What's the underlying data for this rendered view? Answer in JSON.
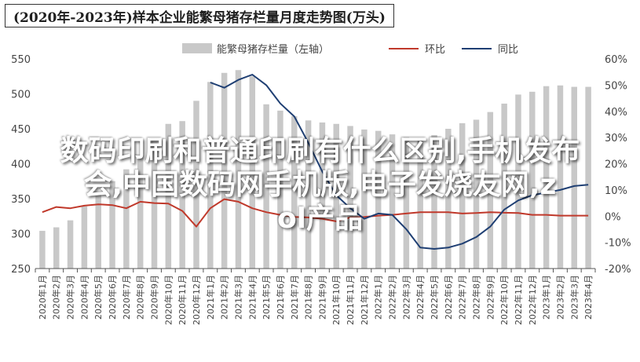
{
  "title": "(2020年-2023年)样本企业能繁母猪存栏量月度走势图(万头)",
  "overlay": {
    "line1": "数码印刷和普通印刷有什么区别,手机发布",
    "line2": "会,中国数码网手机版,电子发烧友网,z",
    "line3": "ol产品"
  },
  "colors": {
    "bar": "#c8c8c8",
    "ring": "#c0392b",
    "yoy": "#1f3f73",
    "axis": "#555555"
  },
  "chart_data": {
    "type": "bar+line",
    "categories": [
      "2020年1月",
      "2020年2月",
      "2020年3月",
      "2020年4月",
      "2020年5月",
      "2020年6月",
      "2020年7月",
      "2020年8月",
      "2020年9月",
      "2020年10月",
      "2020年11月",
      "2020年12月",
      "2021年1月",
      "2021年2月",
      "2021年3月",
      "2021年4月",
      "2021年5月",
      "2021年6月",
      "2021年7月",
      "2021年8月",
      "2021年9月",
      "2021年10月",
      "2021年11月",
      "2021年12月",
      "2022年1月",
      "2022年2月",
      "2022年3月",
      "2022年4月",
      "2022年5月",
      "2022年6月",
      "2022年7月",
      "2022年8月",
      "2022年9月",
      "2022年10月",
      "2022年11月",
      "2022年12月",
      "2023年1月",
      "2023年2月",
      "2023年3月",
      "2023年4月"
    ],
    "y_left": {
      "min": 250,
      "max": 550,
      "ticks": [
        250,
        300,
        350,
        400,
        450,
        500,
        550
      ]
    },
    "y_right": {
      "min": -20,
      "max": 60,
      "ticks": [
        "-20%",
        "-10%",
        "0%",
        "10%",
        "20%",
        "30%",
        "40%",
        "50%",
        "60%"
      ]
    },
    "series": [
      {
        "name": "能繁母猪存栏量（左轴）",
        "type": "bar",
        "axis": "left",
        "values": [
          304,
          309,
          319,
          339,
          357,
          375,
          392,
          412,
          433,
          457,
          461,
          490,
          517,
          530,
          534,
          525,
          485,
          476,
          468,
          462,
          459,
          457,
          454,
          449,
          447,
          442,
          438,
          437,
          441,
          450,
          458,
          463,
          474,
          486,
          499,
          503,
          511,
          512,
          510,
          510
        ]
      },
      {
        "name": "环比",
        "type": "line",
        "axis": "right",
        "color": "#c0392b",
        "values": [
          1.5,
          3.5,
          3.0,
          4.0,
          4.5,
          4.2,
          3.0,
          5.5,
          5.0,
          4.8,
          2.0,
          -4.0,
          3.0,
          6.5,
          5.5,
          3.0,
          1.5,
          0.5,
          -0.3,
          -0.5,
          -1.0,
          -2.0,
          -0.5,
          -0.3,
          0.2,
          0.5,
          1.0,
          1.5,
          1.5,
          1.5,
          1.0,
          1.2,
          1.5,
          1.3,
          1.2,
          0.5,
          0.5,
          0.2,
          0.2,
          0.2
        ]
      },
      {
        "name": "同比",
        "type": "line",
        "axis": "right",
        "color": "#1f3f73",
        "values": [
          null,
          null,
          null,
          null,
          null,
          null,
          null,
          null,
          null,
          null,
          null,
          null,
          51,
          49,
          52,
          54,
          50,
          43,
          38,
          28,
          17,
          8,
          3,
          -1,
          1,
          0.5,
          -5,
          -12,
          -12.5,
          -12,
          -10.5,
          -8,
          -4,
          2.5,
          6,
          8,
          9,
          10,
          11.5,
          12
        ]
      }
    ]
  }
}
